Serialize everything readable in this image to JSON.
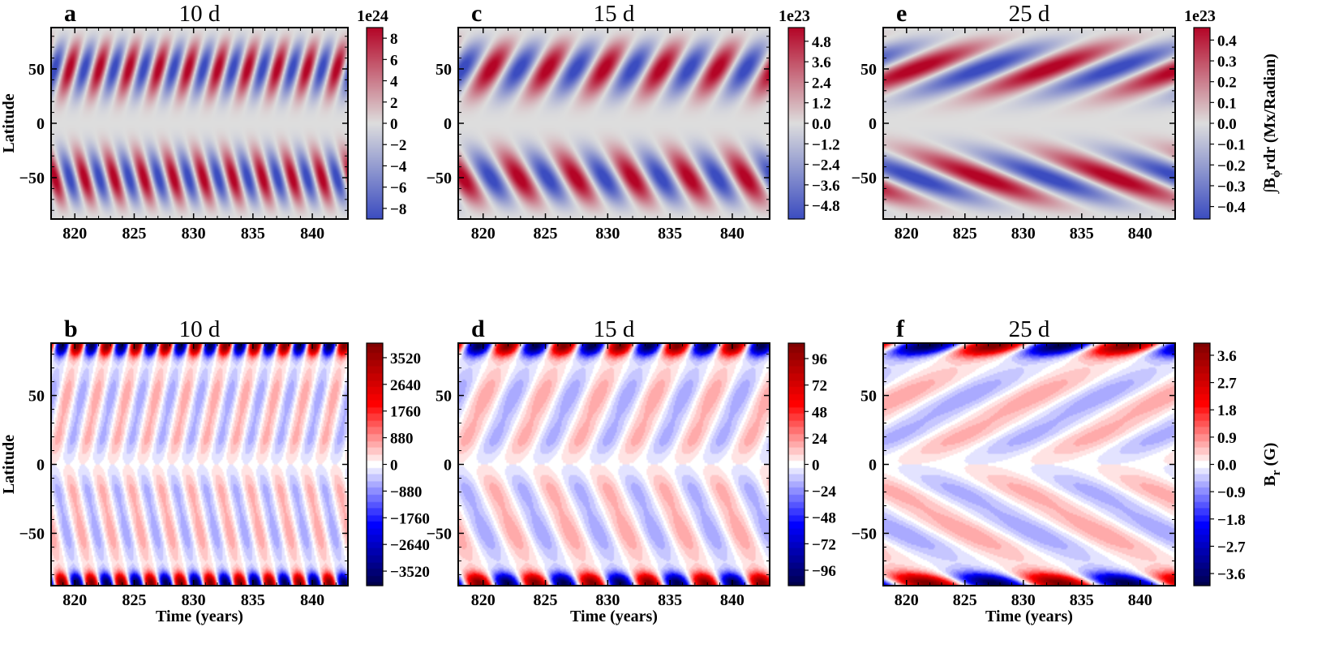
{
  "figure": {
    "panels": [
      {
        "letter": "a",
        "title": "10 d",
        "field": "btor",
        "cycles": 10,
        "drift": 0.85,
        "amp": 9.0,
        "exponent": "1e24",
        "cbar_ticks": [
          "8",
          "6",
          "4",
          "2",
          "0",
          "−2",
          "−4",
          "−6",
          "−8"
        ],
        "cbar_max": 9.0,
        "ylabel": "Latitude",
        "xlabel": "",
        "cbar_label": ""
      },
      {
        "letter": "c",
        "title": "15 d",
        "field": "btor",
        "cycles": 5.5,
        "drift": 0.95,
        "amp": 5.5,
        "exponent": "1e23",
        "cbar_ticks": [
          "4.8",
          "3.6",
          "2.4",
          "1.2",
          "0.0",
          "−1.2",
          "−2.4",
          "−3.6",
          "−4.8"
        ],
        "cbar_max": 5.6,
        "ylabel": "",
        "xlabel": "",
        "cbar_label": ""
      },
      {
        "letter": "e",
        "title": "25 d",
        "field": "btor",
        "cycles": 2.2,
        "drift": 1.7,
        "amp": 0.45,
        "exponent": "1e23",
        "cbar_ticks": [
          "0.4",
          "0.3",
          "0.2",
          "0.1",
          "0.0",
          "−0.1",
          "−0.2",
          "−0.3",
          "−0.4"
        ],
        "cbar_max": 0.46,
        "ylabel": "",
        "xlabel": "",
        "cbar_label": "∫B_ϕrdr (Mx/Radian)"
      },
      {
        "letter": "b",
        "title": "10 d",
        "field": "br",
        "cycles": 10,
        "drift": 0.85,
        "amp": 3800,
        "exponent": "",
        "cbar_ticks": [
          "3520",
          "2640",
          "1760",
          "880",
          "0",
          "−880",
          "−1760",
          "−2640",
          "−3520"
        ],
        "cbar_max": 4000,
        "ylabel": "Latitude",
        "xlabel": "Time (years)",
        "cbar_label": ""
      },
      {
        "letter": "d",
        "title": "15 d",
        "field": "br",
        "cycles": 5.5,
        "drift": 0.95,
        "amp": 105,
        "exponent": "",
        "cbar_ticks": [
          "96",
          "72",
          "48",
          "24",
          "0",
          "−24",
          "−48",
          "−72",
          "−96"
        ],
        "cbar_max": 110,
        "ylabel": "",
        "xlabel": "Time (years)",
        "cbar_label": ""
      },
      {
        "letter": "f",
        "title": "25 d",
        "field": "br",
        "cycles": 2.2,
        "drift": 1.7,
        "amp": 3.9,
        "exponent": "",
        "cbar_ticks": [
          "3.6",
          "2.7",
          "1.8",
          "0.9",
          "0.0",
          "−0.9",
          "−1.8",
          "−2.7",
          "−3.6"
        ],
        "cbar_max": 4.0,
        "ylabel": "",
        "xlabel": "Time (years)",
        "cbar_label": "B_r (G)"
      }
    ],
    "colors": {
      "coolwarm": [
        "#3b4cc0",
        "#dddddd",
        "#b40426"
      ],
      "seismic": [
        "#00004c",
        "#0000ff",
        "#ffffff",
        "#ff0000",
        "#7f0000"
      ]
    }
  },
  "chart_data": [
    {
      "type": "heatmap",
      "panel": "a",
      "title": "10 d",
      "ylabel": "Latitude",
      "xlim": [
        818,
        843
      ],
      "ylim": [
        -88,
        88
      ],
      "x_ticks": [
        "820",
        "825",
        "830",
        "835",
        "840"
      ],
      "y_ticks": [
        "50",
        "0",
        "−50"
      ],
      "y_tick_values": [
        50,
        0,
        -50
      ],
      "colorbar": {
        "multiplier": "1e24",
        "ticks": [
          8,
          6,
          4,
          2,
          0,
          -2,
          -4,
          -6,
          -8
        ],
        "colormap": "coolwarm"
      }
    },
    {
      "type": "heatmap",
      "panel": "c",
      "title": "15 d",
      "xlim": [
        818,
        843
      ],
      "ylim": [
        -88,
        88
      ],
      "x_ticks": [
        "820",
        "825",
        "830",
        "835",
        "840"
      ],
      "y_ticks": [
        "50",
        "0",
        "−50"
      ],
      "y_tick_values": [
        50,
        0,
        -50
      ],
      "colorbar": {
        "multiplier": "1e23",
        "ticks": [
          4.8,
          3.6,
          2.4,
          1.2,
          0.0,
          -1.2,
          -2.4,
          -3.6,
          -4.8
        ],
        "colormap": "coolwarm"
      }
    },
    {
      "type": "heatmap",
      "panel": "e",
      "title": "25 d",
      "xlim": [
        818,
        843
      ],
      "ylim": [
        -88,
        88
      ],
      "x_ticks": [
        "820",
        "825",
        "830",
        "835",
        "840"
      ],
      "y_ticks": [
        "50",
        "0",
        "−50"
      ],
      "y_tick_values": [
        50,
        0,
        -50
      ],
      "colorbar": {
        "multiplier": "1e23",
        "ticks": [
          0.4,
          0.3,
          0.2,
          0.1,
          0.0,
          -0.1,
          -0.2,
          -0.3,
          -0.4
        ],
        "colormap": "coolwarm",
        "label": "∫Bϕrdr (Mx/Radian)"
      }
    },
    {
      "type": "heatmap",
      "panel": "b",
      "title": "10 d",
      "xlabel": "Time (years)",
      "ylabel": "Latitude",
      "xlim": [
        818,
        843
      ],
      "ylim": [
        -88,
        88
      ],
      "x_ticks": [
        "820",
        "825",
        "830",
        "835",
        "840"
      ],
      "y_ticks": [
        "50",
        "0",
        "−50"
      ],
      "y_tick_values": [
        50,
        0,
        -50
      ],
      "colorbar": {
        "ticks": [
          3520,
          2640,
          1760,
          880,
          0,
          -880,
          -1760,
          -2640,
          -3520
        ],
        "colormap": "seismic"
      }
    },
    {
      "type": "heatmap",
      "panel": "d",
      "title": "15 d",
      "xlabel": "Time (years)",
      "xlim": [
        818,
        843
      ],
      "ylim": [
        -88,
        88
      ],
      "x_ticks": [
        "820",
        "825",
        "830",
        "835",
        "840"
      ],
      "y_ticks": [
        "50",
        "0",
        "−50"
      ],
      "y_tick_values": [
        50,
        0,
        -50
      ],
      "colorbar": {
        "ticks": [
          96,
          72,
          48,
          24,
          0,
          -24,
          -48,
          -72,
          -96
        ],
        "colormap": "seismic"
      }
    },
    {
      "type": "heatmap",
      "panel": "f",
      "title": "25 d",
      "xlabel": "Time (years)",
      "xlim": [
        818,
        843
      ],
      "ylim": [
        -88,
        88
      ],
      "x_ticks": [
        "820",
        "825",
        "830",
        "835",
        "840"
      ],
      "y_ticks": [
        "50",
        "0",
        "−50"
      ],
      "y_tick_values": [
        50,
        0,
        -50
      ],
      "colorbar": {
        "ticks": [
          3.6,
          2.7,
          1.8,
          0.9,
          0.0,
          -0.9,
          -1.8,
          -2.7,
          -3.6
        ],
        "colormap": "seismic",
        "label": "Br (G)"
      }
    }
  ]
}
